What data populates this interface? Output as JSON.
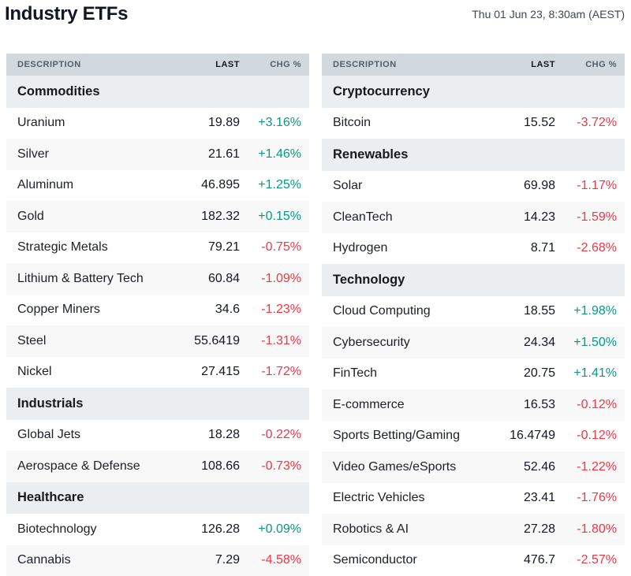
{
  "page": {
    "title": "Industry ETFs",
    "timestamp": "Thu 01 Jun 23, 8:30am (AEST)"
  },
  "columns": {
    "description": "DESCRIPTION",
    "last": "LAST",
    "chg": "CHG %"
  },
  "colors": {
    "positive": "#089981",
    "negative": "#f23645",
    "header_bg": "#d1d8de",
    "section_bg": "#ebeef0",
    "stripe_bg": "#f8f8f9",
    "title_text": "#131722",
    "header_text": "#50606b"
  },
  "tables": [
    {
      "sections": [
        {
          "name": "Commodities",
          "rows": [
            {
              "description": "Uranium",
              "last": "19.89",
              "chg": "+3.16%",
              "direction": "up"
            },
            {
              "description": "Silver",
              "last": "21.61",
              "chg": "+1.46%",
              "direction": "up"
            },
            {
              "description": "Aluminum",
              "last": "46.895",
              "chg": "+1.25%",
              "direction": "up"
            },
            {
              "description": "Gold",
              "last": "182.32",
              "chg": "+0.15%",
              "direction": "up"
            },
            {
              "description": "Strategic Metals",
              "last": "79.21",
              "chg": "-0.75%",
              "direction": "down"
            },
            {
              "description": "Lithium & Battery Tech",
              "last": "60.84",
              "chg": "-1.09%",
              "direction": "down"
            },
            {
              "description": "Copper Miners",
              "last": "34.6",
              "chg": "-1.23%",
              "direction": "down"
            },
            {
              "description": "Steel",
              "last": "55.6419",
              "chg": "-1.31%",
              "direction": "down"
            },
            {
              "description": "Nickel",
              "last": "27.415",
              "chg": "-1.72%",
              "direction": "down"
            }
          ]
        },
        {
          "name": "Industrials",
          "rows": [
            {
              "description": "Global Jets",
              "last": "18.28",
              "chg": "-0.22%",
              "direction": "down"
            },
            {
              "description": "Aerospace & Defense",
              "last": "108.66",
              "chg": "-0.73%",
              "direction": "down"
            }
          ]
        },
        {
          "name": "Healthcare",
          "rows": [
            {
              "description": "Biotechnology",
              "last": "126.28",
              "chg": "+0.09%",
              "direction": "up"
            },
            {
              "description": "Cannabis",
              "last": "7.29",
              "chg": "-4.58%",
              "direction": "down"
            }
          ]
        }
      ]
    },
    {
      "sections": [
        {
          "name": "Cryptocurrency",
          "rows": [
            {
              "description": "Bitcoin",
              "last": "15.52",
              "chg": "-3.72%",
              "direction": "down"
            }
          ]
        },
        {
          "name": "Renewables",
          "rows": [
            {
              "description": "Solar",
              "last": "69.98",
              "chg": "-1.17%",
              "direction": "down"
            },
            {
              "description": "CleanTech",
              "last": "14.23",
              "chg": "-1.59%",
              "direction": "down"
            },
            {
              "description": "Hydrogen",
              "last": "8.71",
              "chg": "-2.68%",
              "direction": "down"
            }
          ]
        },
        {
          "name": "Technology",
          "rows": [
            {
              "description": "Cloud Computing",
              "last": "18.55",
              "chg": "+1.98%",
              "direction": "up"
            },
            {
              "description": "Cybersecurity",
              "last": "24.34",
              "chg": "+1.50%",
              "direction": "up"
            },
            {
              "description": "FinTech",
              "last": "20.75",
              "chg": "+1.41%",
              "direction": "up"
            },
            {
              "description": "E-commerce",
              "last": "16.53",
              "chg": "-0.12%",
              "direction": "down"
            },
            {
              "description": "Sports Betting/Gaming",
              "last": "16.4749",
              "chg": "-0.12%",
              "direction": "down"
            },
            {
              "description": "Video Games/eSports",
              "last": "52.46",
              "chg": "-1.22%",
              "direction": "down"
            },
            {
              "description": "Electric Vehicles",
              "last": "23.41",
              "chg": "-1.76%",
              "direction": "down"
            },
            {
              "description": "Robotics & AI",
              "last": "27.28",
              "chg": "-1.80%",
              "direction": "down"
            },
            {
              "description": "Semiconductor",
              "last": "476.7",
              "chg": "-2.57%",
              "direction": "down"
            }
          ]
        }
      ]
    }
  ]
}
